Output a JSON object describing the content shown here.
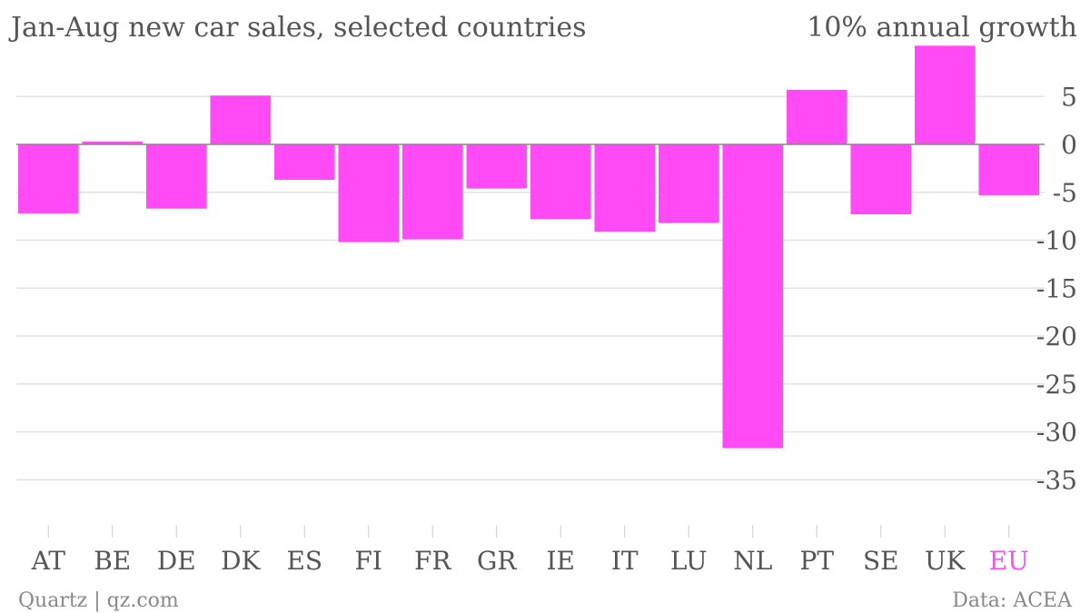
{
  "chart_data": {
    "type": "bar",
    "title": "Jan-Aug new car sales, selected countries",
    "ylabel": "10% annual growth",
    "xlabel": "",
    "categories": [
      "AT",
      "BE",
      "DE",
      "DK",
      "ES",
      "FI",
      "FR",
      "GR",
      "IE",
      "IT",
      "LU",
      "NL",
      "PT",
      "SE",
      "UK",
      "EU"
    ],
    "values": [
      -7.2,
      0.3,
      -6.7,
      5.1,
      -3.7,
      -10.2,
      -9.9,
      -4.6,
      -7.8,
      -9.1,
      -8.2,
      -31.7,
      5.7,
      -7.3,
      10.3,
      -5.3
    ],
    "highlight_category": "EU",
    "ylim": [
      -40,
      10
    ],
    "yticks": [
      5,
      0,
      -5,
      -10,
      -15,
      -20,
      -25,
      -30,
      -35
    ],
    "grid": true,
    "bar_color": "#ff4af5",
    "highlight_color": "#ff4af5",
    "text_color": "#555555"
  },
  "footer": {
    "source_left": "Quartz | qz.com",
    "source_right": "Data: ACEA"
  }
}
